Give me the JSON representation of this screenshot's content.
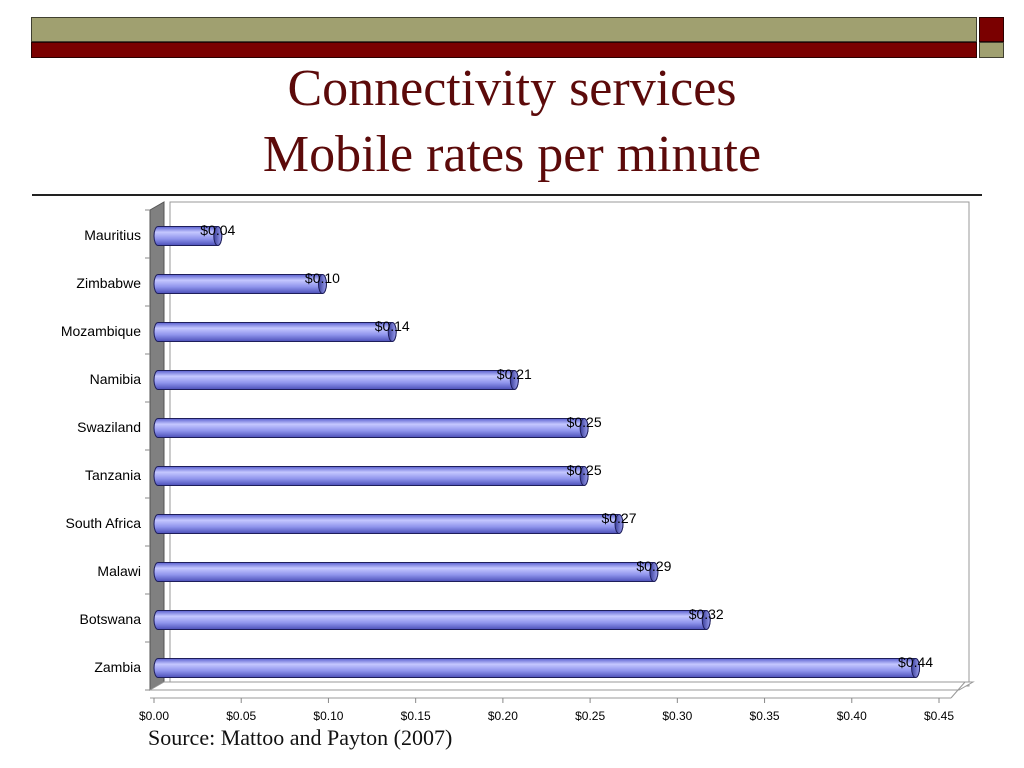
{
  "title": {
    "line1": "Connectivity services",
    "line2": "Mobile rates per minute"
  },
  "source": "Source: Mattoo and Payton (2007)",
  "colors": {
    "band_olive": "#a0a070",
    "band_maroon": "#7a0000",
    "title": "#5c0a0a",
    "bar_fill": "#8a8ee8",
    "bar_edge": "#1e1e5a"
  },
  "chart_data": {
    "type": "bar",
    "orientation": "horizontal",
    "three_d": true,
    "categories": [
      "Mauritius",
      "Zimbabwe",
      "Mozambique",
      "Namibia",
      "Swaziland",
      "Tanzania",
      "South Africa",
      "Malawi",
      "Botswana",
      "Zambia"
    ],
    "values": [
      0.04,
      0.1,
      0.14,
      0.21,
      0.25,
      0.25,
      0.27,
      0.29,
      0.32,
      0.44
    ],
    "value_labels": [
      "$0.04",
      "$0.10",
      "$0.14",
      "$0.21",
      "$0.25",
      "$0.25",
      "$0.27",
      "$0.29",
      "$0.32",
      "$0.44"
    ],
    "x_ticks": [
      "$0.00",
      "$0.05",
      "$0.10",
      "$0.15",
      "$0.20",
      "$0.25",
      "$0.30",
      "$0.35",
      "$0.40",
      "$0.45"
    ],
    "xlim": [
      0,
      0.45
    ],
    "xlabel": "",
    "ylabel": "",
    "grid": false,
    "legend": "none"
  }
}
